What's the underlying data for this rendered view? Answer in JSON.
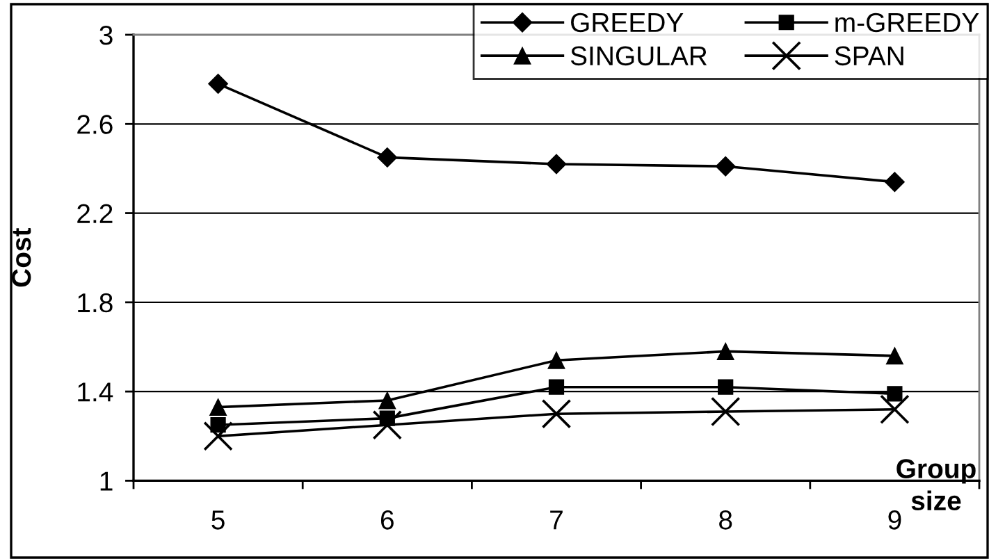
{
  "chart_data": {
    "type": "line",
    "xlabel": "Group size",
    "ylabel": "Cost",
    "categories": [
      "5",
      "6",
      "7",
      "8",
      "9"
    ],
    "series": [
      {
        "name": "GREEDY",
        "color": "#000000",
        "marker": "diamond",
        "values": [
          2.78,
          2.45,
          2.42,
          2.41,
          2.34
        ]
      },
      {
        "name": "m-GREEDY",
        "color": "#000000",
        "marker": "square",
        "values": [
          1.25,
          1.28,
          1.42,
          1.42,
          1.39
        ]
      },
      {
        "name": "SINGULAR",
        "color": "#000000",
        "marker": "triangle",
        "values": [
          1.33,
          1.36,
          1.54,
          1.58,
          1.56
        ]
      },
      {
        "name": "SPAN",
        "color": "#000000",
        "marker": "cross",
        "values": [
          1.2,
          1.25,
          1.3,
          1.31,
          1.32
        ]
      }
    ],
    "ylim": [
      1,
      3
    ],
    "yticks": [
      1,
      1.4,
      1.8,
      2.2,
      2.6,
      3
    ],
    "grid": "y",
    "legend": "top right",
    "line_style": "solid"
  }
}
